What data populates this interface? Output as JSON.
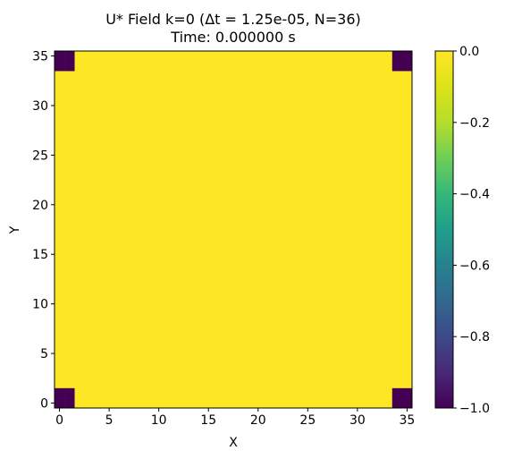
{
  "chart_data": {
    "type": "heatmap",
    "title": "U* Field k=0 (Δt = 1.25e-05, N=36)",
    "subtitle": "Time: 0.000000 s",
    "xlabel": "X",
    "ylabel": "Y",
    "xlim": [
      -0.5,
      35.5
    ],
    "ylim": [
      -0.5,
      35.5
    ],
    "x_ticks": [
      0,
      5,
      10,
      15,
      20,
      25,
      30,
      35
    ],
    "y_ticks": [
      0,
      5,
      10,
      15,
      20,
      25,
      30,
      35
    ],
    "grid": false,
    "colormap": "viridis",
    "colorbar": {
      "vmin": -1.0,
      "vmax": 0.0,
      "ticks": [
        0.0,
        -0.2,
        -0.4,
        -0.6,
        -0.8,
        -1.0
      ],
      "tick_labels": [
        "0.0",
        "−0.2",
        "−0.4",
        "−0.6",
        "−0.8",
        "−1.0"
      ]
    },
    "background_value": 0.0,
    "cells": [
      {
        "x": 0,
        "y": 0,
        "value": -1.0
      },
      {
        "x": 1,
        "y": 0,
        "value": -1.0
      },
      {
        "x": 0,
        "y": 1,
        "value": -1.0
      },
      {
        "x": 1,
        "y": 1,
        "value": -1.0
      },
      {
        "x": 34,
        "y": 0,
        "value": -1.0
      },
      {
        "x": 35,
        "y": 0,
        "value": -1.0
      },
      {
        "x": 34,
        "y": 1,
        "value": -1.0
      },
      {
        "x": 35,
        "y": 1,
        "value": -1.0
      },
      {
        "x": 0,
        "y": 34,
        "value": -1.0
      },
      {
        "x": 1,
        "y": 34,
        "value": -1.0
      },
      {
        "x": 0,
        "y": 35,
        "value": -1.0
      },
      {
        "x": 1,
        "y": 35,
        "value": -1.0
      },
      {
        "x": 34,
        "y": 34,
        "value": -1.0
      },
      {
        "x": 35,
        "y": 34,
        "value": -1.0
      },
      {
        "x": 34,
        "y": 35,
        "value": -1.0
      },
      {
        "x": 35,
        "y": 35,
        "value": -1.0
      }
    ],
    "colors": {
      "max": "#fde725",
      "min": "#440154"
    }
  }
}
